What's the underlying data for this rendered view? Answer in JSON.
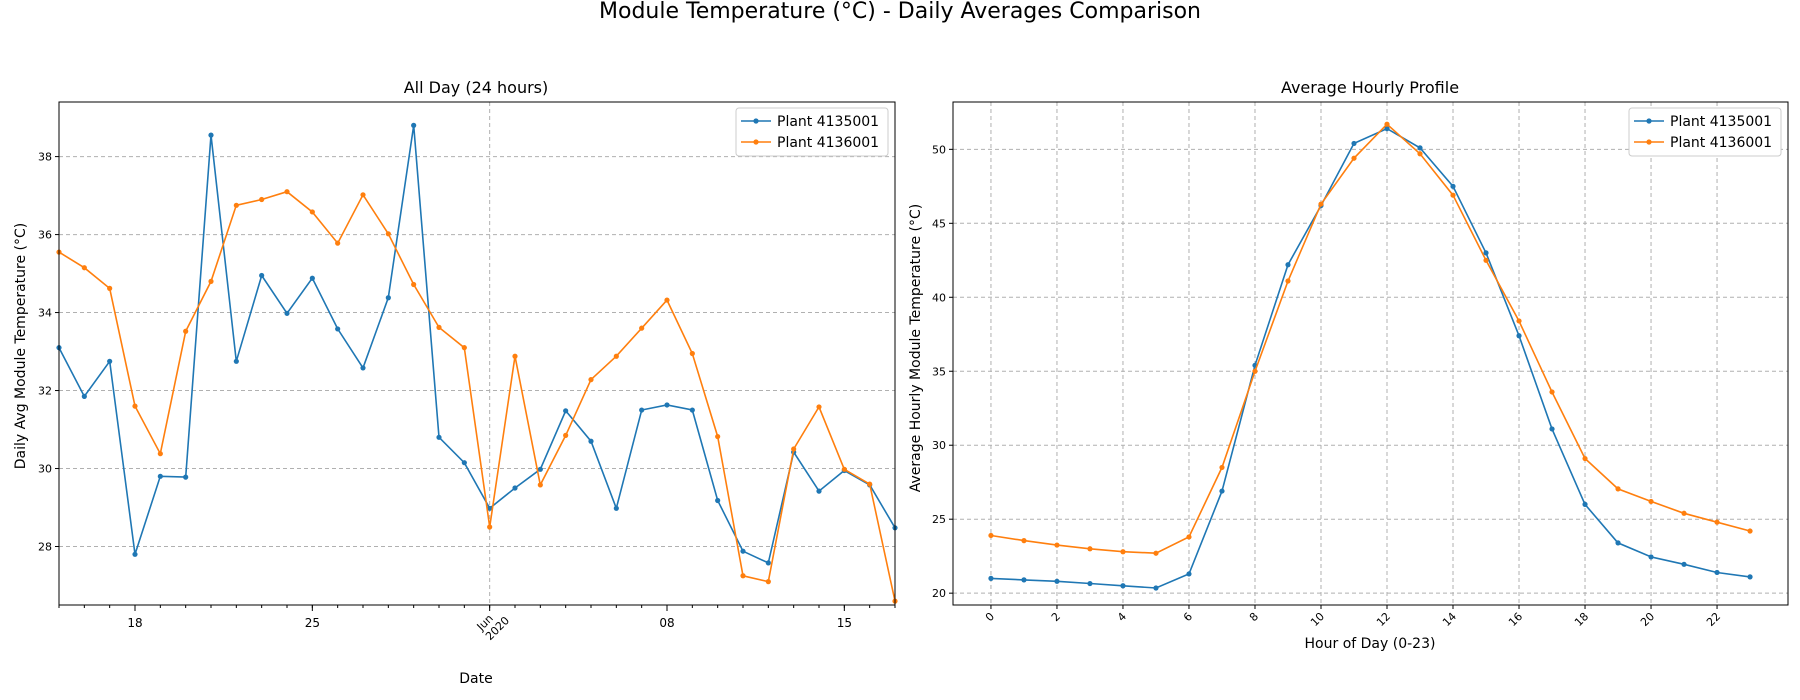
{
  "figure_title": "Module Temperature (°C) - Daily Averages Comparison",
  "colors": {
    "series1": "#1f77b4",
    "series2": "#ff7f0e",
    "grid": "#b0b0b0"
  },
  "chart_data": [
    {
      "type": "line",
      "title": "All Day (24 hours)",
      "xlabel": "Date",
      "ylabel": "Daily Avg Module Temperature (°C)",
      "grid": "vertical at month boundary, horizontal",
      "legend": "top-right",
      "x_range": [
        "2020-05-15",
        "2020-06-17"
      ],
      "ylim": [
        26.5,
        39.4
      ],
      "x_tick_labels": [
        {
          "date": "2020-05-18",
          "label": "18"
        },
        {
          "date": "2020-05-25",
          "label": "25"
        },
        {
          "date": "2020-06-01",
          "label": "Jun\n2020"
        },
        {
          "date": "2020-06-08",
          "label": "08"
        },
        {
          "date": "2020-06-15",
          "label": "15"
        }
      ],
      "y_ticks": [
        28,
        30,
        32,
        34,
        36,
        38
      ],
      "x": [
        "2020-05-15",
        "2020-05-16",
        "2020-05-17",
        "2020-05-18",
        "2020-05-19",
        "2020-05-20",
        "2020-05-21",
        "2020-05-22",
        "2020-05-23",
        "2020-05-24",
        "2020-05-25",
        "2020-05-26",
        "2020-05-27",
        "2020-05-28",
        "2020-05-29",
        "2020-05-30",
        "2020-05-31",
        "2020-06-01",
        "2020-06-02",
        "2020-06-03",
        "2020-06-04",
        "2020-06-05",
        "2020-06-06",
        "2020-06-07",
        "2020-06-08",
        "2020-06-09",
        "2020-06-10",
        "2020-06-11",
        "2020-06-12",
        "2020-06-13",
        "2020-06-14",
        "2020-06-15",
        "2020-06-16",
        "2020-06-17"
      ],
      "series": [
        {
          "name": "Plant 4135001",
          "values": [
            33.1,
            31.85,
            32.75,
            27.8,
            29.8,
            29.78,
            38.55,
            32.75,
            34.95,
            33.98,
            34.88,
            33.58,
            32.58,
            34.38,
            38.8,
            30.8,
            30.15,
            28.98,
            29.5,
            29.98,
            31.48,
            30.7,
            28.98,
            31.5,
            31.63,
            31.5,
            29.18,
            27.88,
            27.58,
            30.42,
            29.42,
            29.95,
            29.58,
            28.48
          ]
        },
        {
          "name": "Plant 4136001",
          "values": [
            35.55,
            35.15,
            34.62,
            31.6,
            30.38,
            33.52,
            34.8,
            36.75,
            36.9,
            37.1,
            36.58,
            35.78,
            37.02,
            36.02,
            34.72,
            33.62,
            33.1,
            28.5,
            32.88,
            29.58,
            30.85,
            32.28,
            32.88,
            33.6,
            34.32,
            32.95,
            30.82,
            27.25,
            27.1,
            30.5,
            31.58,
            29.98,
            29.6,
            26.6
          ]
        }
      ]
    },
    {
      "type": "line",
      "title": "Average Hourly Profile",
      "xlabel": "Hour of Day (0-23)",
      "ylabel": "Average Hourly Module Temperature (°C)",
      "grid": "on",
      "legend": "top-right",
      "xlim": [
        -1.15,
        24.15
      ],
      "ylim": [
        19.2,
        53.2
      ],
      "x_ticks": [
        0,
        2,
        4,
        6,
        8,
        10,
        12,
        14,
        16,
        18,
        20,
        22
      ],
      "y_ticks": [
        20,
        25,
        30,
        35,
        40,
        45,
        50
      ],
      "x": [
        0,
        1,
        2,
        3,
        4,
        5,
        6,
        7,
        8,
        9,
        10,
        11,
        12,
        13,
        14,
        15,
        16,
        17,
        18,
        19,
        20,
        21,
        22,
        23
      ],
      "series": [
        {
          "name": "Plant 4135001",
          "values": [
            21.0,
            20.9,
            20.8,
            20.65,
            20.5,
            20.35,
            21.3,
            26.9,
            35.4,
            42.2,
            46.2,
            50.4,
            51.4,
            50.1,
            47.5,
            43.0,
            37.4,
            31.1,
            26.0,
            23.4,
            22.45,
            21.95,
            21.4,
            21.1
          ]
        },
        {
          "name": "Plant 4136001",
          "values": [
            23.9,
            23.55,
            23.25,
            23.0,
            22.8,
            22.7,
            23.8,
            28.5,
            35.0,
            41.1,
            46.3,
            49.4,
            51.7,
            49.7,
            46.9,
            42.5,
            38.4,
            33.6,
            29.1,
            27.05,
            26.2,
            25.4,
            24.8,
            24.2
          ]
        }
      ]
    }
  ]
}
